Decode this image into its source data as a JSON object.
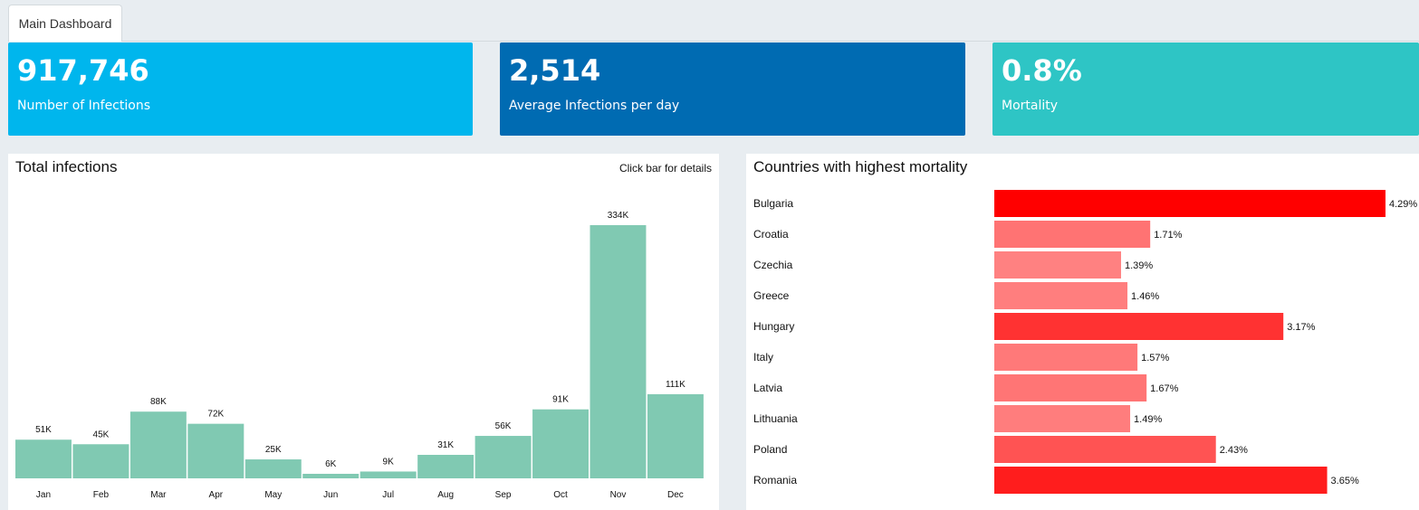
{
  "tabs": [
    {
      "label": "Main Dashboard"
    }
  ],
  "kpis": [
    {
      "value": "917,746",
      "label": "Number of Infections",
      "color": "#00b6ed"
    },
    {
      "value": "2,514",
      "label": "Average Infections per day",
      "color": "#006bb2"
    },
    {
      "value": "0.8%",
      "label": "Mortality",
      "color": "#2ec5c5"
    }
  ],
  "infections_panel": {
    "title": "Total infections",
    "hint": "Click bar for details"
  },
  "mortality_panel": {
    "title": "Countries with highest mortality"
  },
  "chart_data": [
    {
      "type": "bar",
      "title": "Total infections",
      "categories": [
        "Jan",
        "Feb",
        "Mar",
        "Apr",
        "May",
        "Jun",
        "Jul",
        "Aug",
        "Sep",
        "Oct",
        "Nov",
        "Dec"
      ],
      "values": [
        51000,
        45000,
        88000,
        72000,
        25000,
        6000,
        9000,
        31000,
        56000,
        91000,
        334000,
        111000
      ],
      "labels": [
        "51K",
        "45K",
        "88K",
        "72K",
        "25K",
        "6K",
        "9K",
        "31K",
        "56K",
        "91K",
        "334K",
        "111K"
      ],
      "color": "#80c9b2",
      "ylim": [
        0,
        334000
      ]
    },
    {
      "type": "bar",
      "orientation": "horizontal",
      "title": "Countries with highest mortality",
      "categories": [
        "Bulgaria",
        "Croatia",
        "Czechia",
        "Greece",
        "Hungary",
        "Italy",
        "Latvia",
        "Lithuania",
        "Poland",
        "Romania"
      ],
      "values": [
        4.29,
        1.71,
        1.39,
        1.46,
        3.17,
        1.57,
        1.67,
        1.49,
        2.43,
        3.65
      ],
      "labels": [
        "4.29%",
        "1.71%",
        "1.39%",
        "1.46%",
        "3.17%",
        "1.57%",
        "1.67%",
        "1.49%",
        "2.43%",
        "3.65%"
      ],
      "xlim": [
        0,
        4.29
      ]
    }
  ]
}
